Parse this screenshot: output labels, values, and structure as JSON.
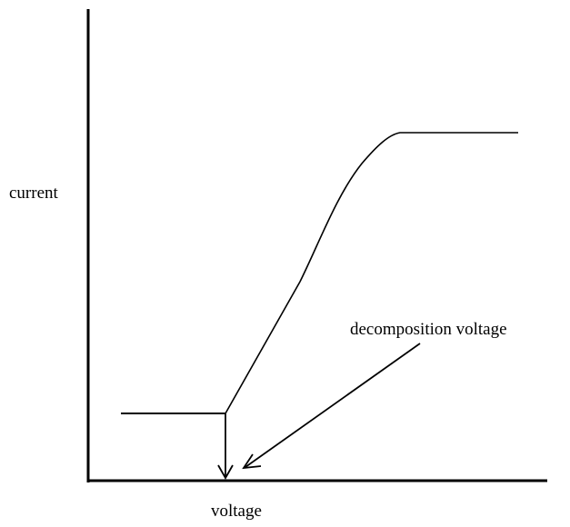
{
  "axes": {
    "y_label": "current",
    "x_label": "voltage"
  },
  "annotation": "decomposition voltage"
}
